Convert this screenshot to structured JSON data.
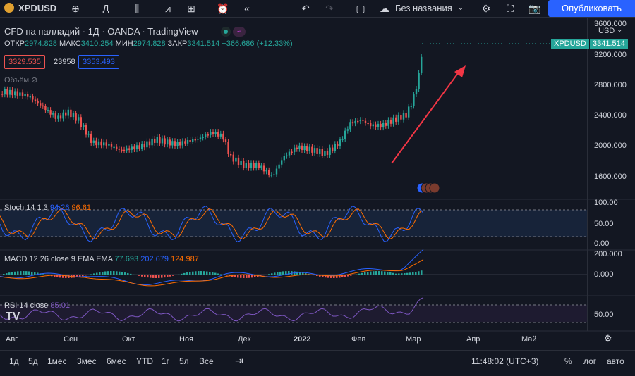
{
  "toolbar": {
    "symbol": "XPDUSD",
    "interval": "Д",
    "layout_name": "Без названия",
    "publish_label": "Опубликовать",
    "icons": [
      "add-icon",
      "candles-icon",
      "indicators-icon",
      "templates-icon",
      "alert-icon",
      "replay-icon",
      "undo-icon",
      "redo-icon",
      "rectangle-icon",
      "cloud-icon",
      "chevron-down-icon",
      "settings-icon",
      "fullscreen-icon",
      "camera-icon"
    ]
  },
  "legend": {
    "title": "CFD на палладий · 1Д · OANDA · TradingView",
    "open_label": "ОТКР",
    "open": "2974.828",
    "high_label": "МАКС",
    "high": "3410.254",
    "low_label": "МИН",
    "low": "2974.828",
    "close_label": "ЗАКР",
    "close": "3341.514",
    "change": "+366.686 (+12.33%)",
    "bid": "3329.535",
    "spread": "23958",
    "ask": "3353.493",
    "volume_label": "Объём"
  },
  "indicators": {
    "stoch": {
      "name": "Stoch 14 1 3",
      "k": "94.26",
      "d": "96.61"
    },
    "macd": {
      "name": "MACD 12 26 close 9 EMA EMA",
      "hist": "77.693",
      "macd": "202.679",
      "signal": "124.987"
    },
    "rsi": {
      "name": "RSI 14 close",
      "value": "85.01"
    }
  },
  "price_axis": {
    "currency": "USD",
    "ticks": [
      "3600.000",
      "3200.000",
      "2800.000",
      "2400.000",
      "2000.000",
      "1600.000"
    ],
    "tag_symbol": "XPDUSD",
    "tag_price": "3341.514",
    "stoch_ticks": [
      "100.00",
      "50.00",
      "0.00"
    ],
    "macd_ticks": [
      "200.000",
      "0.000"
    ],
    "rsi_ticks": [
      "50.00"
    ]
  },
  "time_axis": [
    "Авг",
    "Сен",
    "Окт",
    "Ноя",
    "Дек",
    "2022",
    "Фев",
    "Мар",
    "Апр",
    "Май"
  ],
  "bottom": {
    "ranges": [
      "1д",
      "5д",
      "1мес",
      "3мес",
      "6мес",
      "YTD",
      "1г",
      "5л",
      "Все"
    ],
    "clock": "11:48:02 (UTC+3)",
    "percent": "%",
    "log": "лог",
    "auto": "авто"
  },
  "colors": {
    "up": "#26a69a",
    "down": "#ef5350",
    "accent": "#2962ff",
    "arrow": "#f23645"
  }
}
